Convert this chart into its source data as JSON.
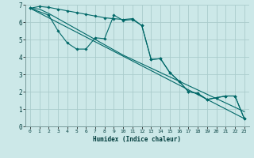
{
  "xlabel": "Humidex (Indice chaleur)",
  "bg_color": "#cce8e8",
  "grid_color": "#aacccc",
  "line_color": "#006868",
  "xlim": [
    -0.5,
    23.5
  ],
  "ylim": [
    0,
    7
  ],
  "xtick_labels": [
    "0",
    "1",
    "2",
    "3",
    "4",
    "5",
    "6",
    "7",
    "8",
    "9",
    "10",
    "11",
    "12",
    "13",
    "14",
    "15",
    "16",
    "17",
    "18",
    "19",
    "20",
    "21",
    "22",
    "23"
  ],
  "yticks": [
    0,
    1,
    2,
    3,
    4,
    5,
    6,
    7
  ],
  "series": {
    "line1_smooth": {
      "x": [
        0,
        1,
        2,
        3,
        4,
        5,
        6,
        7,
        8,
        9,
        10,
        11,
        12,
        13,
        14,
        15,
        16,
        17,
        18,
        19,
        20,
        21,
        22,
        23
      ],
      "y": [
        6.8,
        6.9,
        6.85,
        6.75,
        6.65,
        6.55,
        6.45,
        6.35,
        6.25,
        6.2,
        6.15,
        6.2,
        5.8,
        3.85,
        3.9,
        3.1,
        2.6,
        2.0,
        1.9,
        1.55,
        1.65,
        1.75,
        1.75,
        0.45
      ],
      "marker": true
    },
    "line2_bumpy": {
      "x": [
        0,
        2,
        3,
        4,
        5,
        6,
        7,
        8,
        9,
        10,
        11,
        12,
        13,
        14,
        15,
        16,
        17,
        18,
        19,
        20,
        21,
        22,
        23
      ],
      "y": [
        6.8,
        6.4,
        5.5,
        4.8,
        4.45,
        4.45,
        5.1,
        5.05,
        6.4,
        6.1,
        6.15,
        5.8,
        3.85,
        3.9,
        3.1,
        2.6,
        2.0,
        1.9,
        1.55,
        1.65,
        1.75,
        1.75,
        0.45
      ],
      "marker": true
    },
    "line3_linear": {
      "x": [
        0,
        23
      ],
      "y": [
        6.8,
        0.45
      ],
      "marker": false
    },
    "line4_stepped": {
      "x": [
        0,
        1,
        2,
        3,
        4,
        5,
        6,
        7,
        8,
        9,
        10,
        11,
        12,
        13,
        14,
        15,
        16,
        17,
        18,
        19,
        20,
        21,
        22,
        23
      ],
      "y": [
        6.8,
        6.75,
        6.5,
        6.2,
        5.9,
        5.6,
        5.3,
        5.0,
        4.7,
        4.4,
        4.1,
        3.85,
        3.6,
        3.35,
        3.1,
        2.85,
        2.6,
        2.35,
        2.1,
        1.85,
        1.6,
        1.35,
        1.1,
        0.85
      ],
      "marker": false
    }
  }
}
